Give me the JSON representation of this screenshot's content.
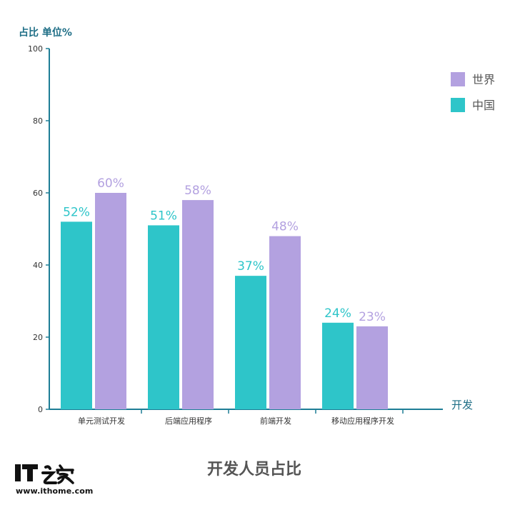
{
  "chart_data": {
    "type": "bar",
    "title": "开发人员占比",
    "ylabel": "占比 单位%",
    "xlabel": "开发",
    "ylim": [
      0,
      100
    ],
    "yticks": [
      0,
      20,
      40,
      60,
      80,
      100
    ],
    "categories": [
      "单元测试开发",
      "后端应用程序",
      "前端开发",
      "移动应用程序开发"
    ],
    "series": [
      {
        "name": "中国",
        "color": "#2ec5c9",
        "values": [
          52,
          51,
          37,
          24
        ],
        "data_labels": [
          "52%",
          "51%",
          "37%",
          "24%"
        ]
      },
      {
        "name": "世界",
        "color": "#b3a1e0",
        "values": [
          60,
          58,
          48,
          23
        ],
        "data_labels": [
          "60%",
          "58%",
          "48%",
          "23%"
        ]
      }
    ],
    "legend_order": [
      "世界",
      "中国"
    ],
    "legend_position": "top-right",
    "grid": false,
    "axis_color": "#1e7e96"
  },
  "watermark": {
    "logo_text": "IT之家",
    "site": "www.ithome.com"
  }
}
